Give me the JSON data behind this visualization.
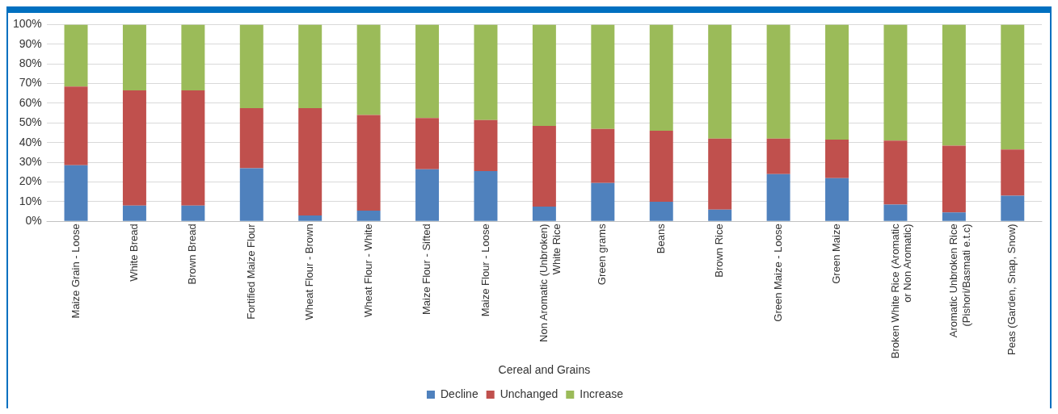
{
  "chart_data": {
    "type": "bar",
    "stacked": true,
    "xlabel": "Cereal and Grains",
    "categories": [
      "Maize Grain - Loose",
      "White Bread",
      "Brown Bread",
      "Fortified Maize Flour",
      "Wheat Flour - Brown",
      "Wheat Flour - White",
      "Maize Flour - Sifted",
      "Maize Flour - Loose",
      "Non Aromatic (Unbroken) White Rice",
      "Green grams",
      "Beans",
      "Brown Rice",
      "Green Maize - Loose",
      "Green Maize",
      "Broken White Rice (Aromatic or Non Aromatic)",
      "Aromatic Unbroken Rice (Pishori/Basmati e.t.c)",
      "Peas (Garden, Snap, Snow)"
    ],
    "series": [
      {
        "name": "Decline",
        "color": "#4f81bd",
        "values": [
          28.5,
          8,
          8,
          27,
          3,
          5.5,
          26.5,
          25.5,
          7.5,
          19.5,
          10,
          6,
          24,
          22,
          8.5,
          4.5,
          13
        ]
      },
      {
        "name": "Unchanged",
        "color": "#c0504d",
        "values": [
          40,
          58.5,
          58.5,
          30.5,
          54.5,
          48.5,
          26,
          26,
          41,
          27.5,
          36,
          36,
          18,
          19.5,
          32.5,
          34,
          23.5
        ]
      },
      {
        "name": "Increase",
        "color": "#9bbb59",
        "values": [
          31.5,
          33.5,
          33.5,
          42.5,
          42.5,
          46,
          47.5,
          48.5,
          51.5,
          53,
          54,
          58,
          58,
          58.5,
          59,
          61.5,
          63.5
        ]
      }
    ],
    "ylim": [
      0,
      100
    ],
    "yticks": [
      {
        "value": 0,
        "label": "0%"
      },
      {
        "value": 10,
        "label": "10%"
      },
      {
        "value": 20,
        "label": "20%"
      },
      {
        "value": 30,
        "label": "30%"
      },
      {
        "value": 40,
        "label": "40%"
      },
      {
        "value": 50,
        "label": "50%"
      },
      {
        "value": 60,
        "label": "60%"
      },
      {
        "value": 70,
        "label": "70%"
      },
      {
        "value": 80,
        "label": "80%"
      },
      {
        "value": 90,
        "label": "90%"
      },
      {
        "value": 100,
        "label": "100%"
      }
    ],
    "grid": "y",
    "legend": "bottom"
  }
}
